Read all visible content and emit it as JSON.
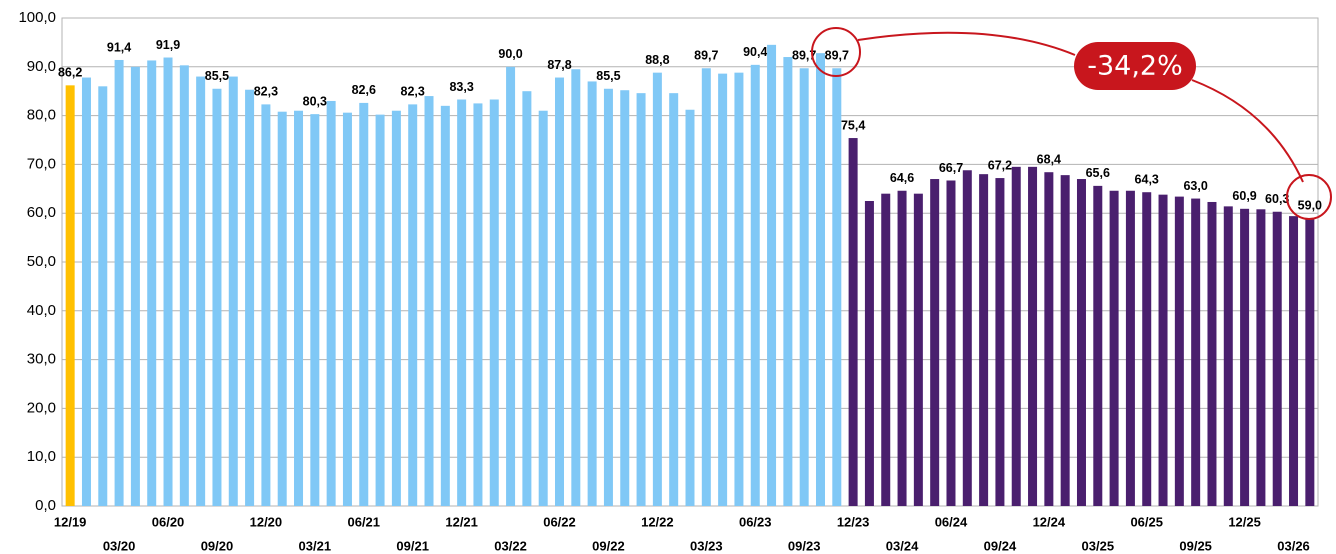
{
  "chart_data": {
    "type": "bar",
    "categories": [
      "12/19",
      null,
      null,
      "03/20",
      null,
      null,
      "06/20",
      null,
      null,
      "09/20",
      null,
      null,
      "12/20",
      null,
      null,
      "03/21",
      null,
      null,
      "06/21",
      null,
      null,
      "09/21",
      null,
      null,
      "12/21",
      null,
      null,
      "03/22",
      null,
      null,
      "06/22",
      null,
      null,
      "09/22",
      null,
      null,
      "12/22",
      null,
      null,
      "03/23",
      null,
      null,
      "06/23",
      null,
      null,
      "09/23",
      null,
      null,
      "12/23",
      null,
      null,
      "03/24",
      null,
      null,
      "06/24",
      null,
      null,
      "09/24",
      null,
      null,
      "12/24",
      null,
      null,
      "03/25",
      null,
      null,
      "06/25",
      null,
      null,
      "09/25",
      null,
      null,
      "12/25",
      null,
      null,
      "03/26",
      null
    ],
    "values": [
      86.2,
      87.8,
      86.0,
      91.4,
      90.0,
      91.3,
      91.9,
      90.3,
      88.0,
      85.5,
      88.0,
      85.3,
      82.3,
      80.8,
      81.0,
      80.3,
      83.0,
      80.6,
      82.6,
      80.2,
      81.0,
      82.3,
      84.0,
      82.0,
      83.3,
      82.5,
      83.3,
      90.0,
      85.0,
      81.0,
      87.8,
      89.5,
      87.0,
      85.5,
      85.2,
      84.6,
      88.8,
      84.6,
      81.2,
      89.7,
      88.6,
      88.8,
      90.4,
      94.5,
      92.0,
      89.7,
      92.8,
      89.7,
      75.4,
      62.5,
      64.0,
      64.6,
      64.0,
      67.0,
      66.7,
      68.8,
      68.0,
      67.2,
      69.5,
      69.5,
      68.4,
      67.8,
      67.0,
      65.6,
      64.6,
      64.6,
      64.3,
      63.8,
      63.4,
      63.0,
      62.3,
      61.4,
      60.9,
      60.8,
      60.3,
      59.4,
      59.0
    ],
    "value_labels": [
      "86,2",
      null,
      null,
      "91,4",
      null,
      null,
      "91,9",
      null,
      null,
      "85,5",
      null,
      null,
      "82,3",
      null,
      null,
      "80,3",
      null,
      null,
      "82,6",
      null,
      null,
      "82,3",
      null,
      null,
      "83,3",
      null,
      null,
      "90,0",
      null,
      null,
      "87,8",
      null,
      null,
      "85,5",
      null,
      null,
      "88,8",
      null,
      null,
      "89,7",
      null,
      null,
      "90,4",
      null,
      null,
      "89,7",
      null,
      "89,7",
      "75,4",
      null,
      null,
      "64,6",
      null,
      null,
      "66,7",
      null,
      null,
      "67,2",
      null,
      null,
      "68,4",
      null,
      null,
      "65,6",
      null,
      null,
      "64,3",
      null,
      null,
      "63,0",
      null,
      null,
      "60,9",
      null,
      "60,3",
      null,
      "59,0"
    ],
    "colors": [
      "#ffc000",
      "#80c8f6",
      "#80c8f6",
      "#80c8f6",
      "#80c8f6",
      "#80c8f6",
      "#80c8f6",
      "#80c8f6",
      "#80c8f6",
      "#80c8f6",
      "#80c8f6",
      "#80c8f6",
      "#80c8f6",
      "#80c8f6",
      "#80c8f6",
      "#80c8f6",
      "#80c8f6",
      "#80c8f6",
      "#80c8f6",
      "#80c8f6",
      "#80c8f6",
      "#80c8f6",
      "#80c8f6",
      "#80c8f6",
      "#80c8f6",
      "#80c8f6",
      "#80c8f6",
      "#80c8f6",
      "#80c8f6",
      "#80c8f6",
      "#80c8f6",
      "#80c8f6",
      "#80c8f6",
      "#80c8f6",
      "#80c8f6",
      "#80c8f6",
      "#80c8f6",
      "#80c8f6",
      "#80c8f6",
      "#80c8f6",
      "#80c8f6",
      "#80c8f6",
      "#80c8f6",
      "#80c8f6",
      "#80c8f6",
      "#80c8f6",
      "#80c8f6",
      "#80c8f6",
      "#4a1f6e",
      "#4a1f6e",
      "#4a1f6e",
      "#4a1f6e",
      "#4a1f6e",
      "#4a1f6e",
      "#4a1f6e",
      "#4a1f6e",
      "#4a1f6e",
      "#4a1f6e",
      "#4a1f6e",
      "#4a1f6e",
      "#4a1f6e",
      "#4a1f6e",
      "#4a1f6e",
      "#4a1f6e",
      "#4a1f6e",
      "#4a1f6e",
      "#4a1f6e",
      "#4a1f6e",
      "#4a1f6e",
      "#4a1f6e",
      "#4a1f6e",
      "#4a1f6e",
      "#4a1f6e",
      "#4a1f6e",
      "#4a1f6e",
      "#4a1f6e",
      "#4a1f6e"
    ],
    "ylim": [
      0,
      100
    ],
    "yticks": [
      {
        "value": 0,
        "label": "0,0"
      },
      {
        "value": 10,
        "label": "10,0"
      },
      {
        "value": 20,
        "label": "20,0"
      },
      {
        "value": 30,
        "label": "30,0"
      },
      {
        "value": 40,
        "label": "40,0"
      },
      {
        "value": 50,
        "label": "50,0"
      },
      {
        "value": 60,
        "label": "60,0"
      },
      {
        "value": 70,
        "label": "70,0"
      },
      {
        "value": 80,
        "label": "80,0"
      },
      {
        "value": 90,
        "label": "90,0"
      },
      {
        "value": 100,
        "label": "100,0"
      }
    ],
    "grid": true,
    "annotation": "-34,2%"
  }
}
